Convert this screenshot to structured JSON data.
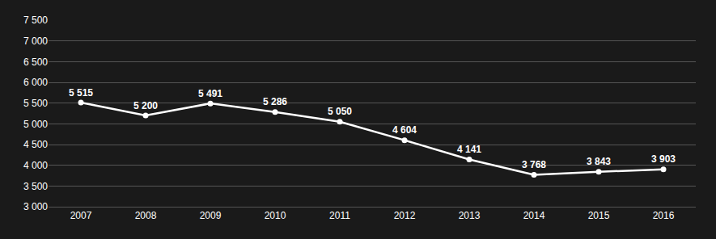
{
  "chart_data": {
    "type": "line",
    "x": [
      2007,
      2008,
      2009,
      2010,
      2011,
      2012,
      2013,
      2014,
      2015,
      2016
    ],
    "values": [
      5515,
      5200,
      5491,
      5286,
      5050,
      4604,
      4141,
      3768,
      3843,
      3903
    ],
    "value_labels": [
      "5 515",
      "5 200",
      "5 491",
      "5 286",
      "5 050",
      "4 604",
      "4 141",
      "3 768",
      "3 843",
      "3 903"
    ],
    "data_labels": true,
    "color": "#ffffff",
    "marker": "circle",
    "xlim": [
      2006.5,
      2016.5
    ],
    "xticks": [
      2007,
      2008,
      2009,
      2010,
      2011,
      2012,
      2013,
      2014,
      2015,
      2016
    ],
    "ylim": [
      3000,
      7500
    ],
    "yticks": [
      {
        "value": 3000,
        "label": "3 000"
      },
      {
        "value": 3500,
        "label": "3 500"
      },
      {
        "value": 4000,
        "label": "4 000"
      },
      {
        "value": 4500,
        "label": "4 500"
      },
      {
        "value": 5000,
        "label": "5 000"
      },
      {
        "value": 5500,
        "label": "5 500"
      },
      {
        "value": 6000,
        "label": "6 000"
      },
      {
        "value": 6500,
        "label": "6 500"
      },
      {
        "value": 7000,
        "label": "7 000"
      },
      {
        "value": 7500,
        "label": "7 500"
      }
    ],
    "grid": true
  }
}
